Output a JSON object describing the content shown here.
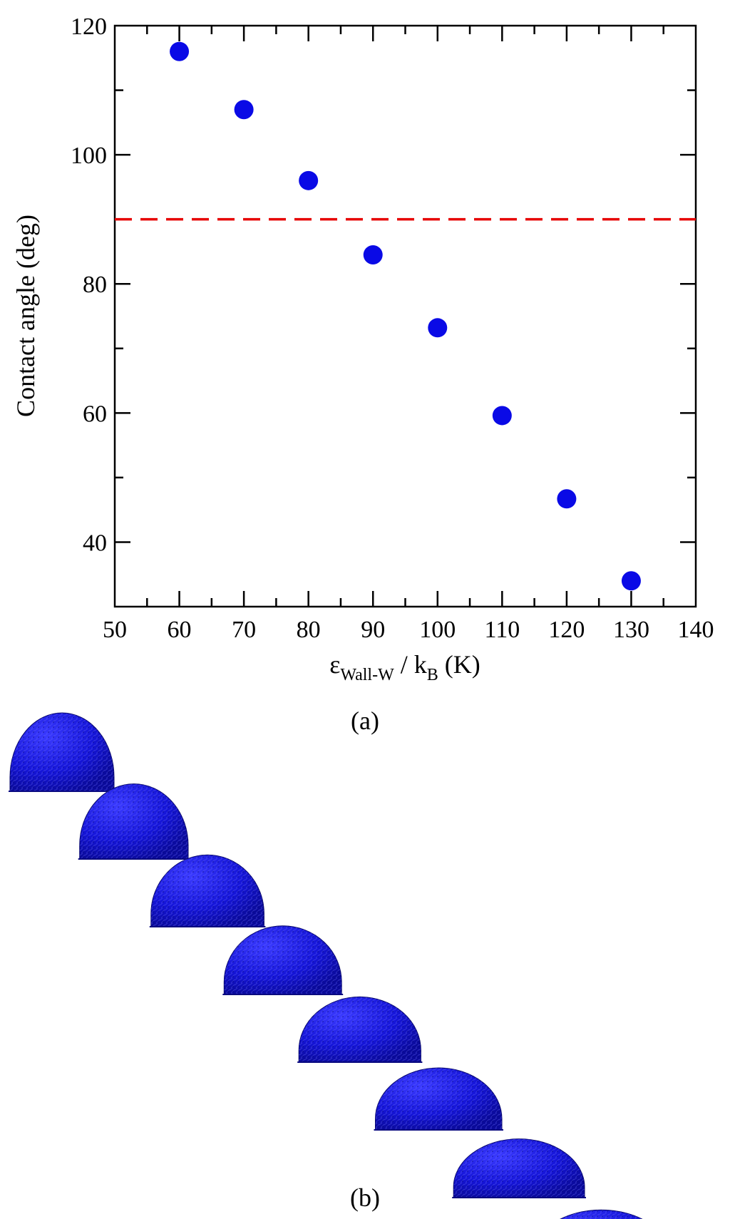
{
  "chart_data": {
    "type": "scatter",
    "title": "",
    "xlabel_main": "ε",
    "xlabel_sub1": "Wall-W",
    "xlabel_mid": " / k",
    "xlabel_sub2": "B",
    "xlabel_end": " (K)",
    "ylabel": "Contact angle (deg)",
    "xlim": [
      50,
      140
    ],
    "ylim": [
      30,
      120
    ],
    "x_major_ticks": [
      50,
      60,
      70,
      80,
      90,
      100,
      110,
      120,
      130,
      140
    ],
    "x_minor_ticks": [
      55,
      65,
      75,
      85,
      95,
      105,
      115,
      125,
      135
    ],
    "y_major_ticks": [
      40,
      60,
      80,
      100,
      120
    ],
    "y_minor_ticks": [
      50,
      70,
      90,
      110
    ],
    "x": [
      60,
      70,
      80,
      90,
      100,
      110,
      120,
      130
    ],
    "y": [
      116,
      107,
      96,
      84.5,
      73.2,
      59.6,
      46.7,
      34
    ],
    "marker_color": "#0a0ae6",
    "reference_line": {
      "y": 90,
      "color": "#e60000",
      "style": "dashed"
    },
    "grid": false
  },
  "panels": {
    "a": "(a)",
    "b": "(b)"
  },
  "droplet_color": "#1a1ae0"
}
